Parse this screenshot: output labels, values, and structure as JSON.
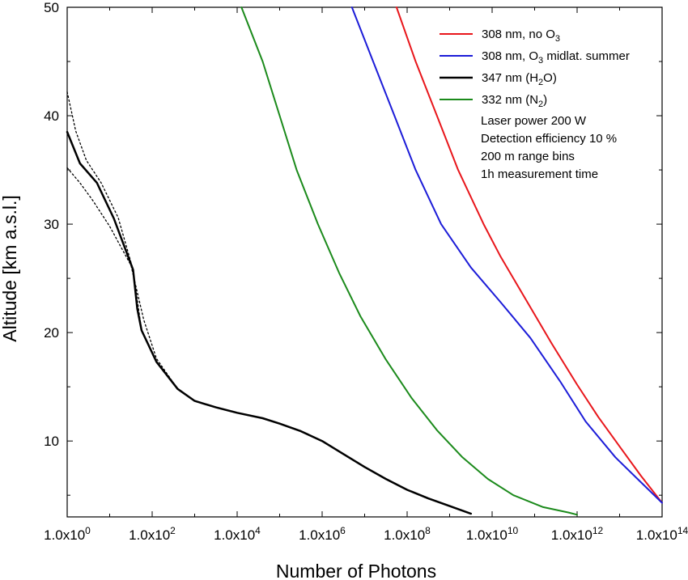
{
  "chart_data": {
    "type": "line",
    "xlabel": "Number of Photons",
    "ylabel": "Altitude [km a.s.l.]",
    "xscale": "log",
    "xlim_log10": [
      0,
      14
    ],
    "ylim": [
      3,
      50
    ],
    "grid": false,
    "legend_position": "top-right",
    "x_ticks": [
      {
        "exp": 0,
        "mant": "1.0x10",
        "sup": "0"
      },
      {
        "exp": 2,
        "mant": "1.0x10",
        "sup": "2"
      },
      {
        "exp": 4,
        "mant": "1.0x10",
        "sup": "4"
      },
      {
        "exp": 6,
        "mant": "1.0x10",
        "sup": "6"
      },
      {
        "exp": 8,
        "mant": "1.0x10",
        "sup": "8"
      },
      {
        "exp": 10,
        "mant": "1.0x10",
        "sup": "10"
      },
      {
        "exp": 12,
        "mant": "1.0x10",
        "sup": "12"
      },
      {
        "exp": 14,
        "mant": "1.0x10",
        "sup": "14"
      }
    ],
    "y_ticks": [
      10,
      20,
      30,
      40,
      50
    ],
    "series": [
      {
        "key": "red",
        "legend": {
          "text": "308 nm, no O",
          "sub": "3",
          "after": ""
        },
        "color": "#e8161b",
        "width": 2,
        "style": "solid",
        "log10x": [
          7.75,
          8.2,
          8.7,
          9.2,
          9.8,
          10.2,
          10.8,
          11.4,
          12.0,
          12.5,
          13.0,
          13.5,
          14.0
        ],
        "y": [
          50,
          45,
          40,
          35,
          30,
          27,
          23,
          19,
          15.2,
          12.2,
          9.5,
          6.8,
          4.3
        ]
      },
      {
        "key": "blue",
        "legend": {
          "text": "308 nm, O",
          "sub": "3",
          "after": " midlat. summer"
        },
        "color": "#1c1cd8",
        "width": 2,
        "style": "solid",
        "log10x": [
          6.7,
          7.2,
          7.7,
          8.2,
          8.8,
          9.5,
          10.2,
          10.9,
          11.6,
          12.2,
          12.9,
          13.5,
          14.0
        ],
        "y": [
          50,
          45,
          40,
          35,
          30,
          26,
          22.8,
          19.5,
          15.5,
          11.8,
          8.5,
          6.2,
          4.3
        ]
      },
      {
        "key": "black",
        "legend": {
          "text": "347 nm (H",
          "sub": "2",
          "after": "O)"
        },
        "color": "#000000",
        "width": 2.5,
        "style": "solid",
        "log10x": [
          0,
          0.3,
          0.7,
          1.1,
          1.55,
          1.65,
          1.75,
          2.1,
          2.6,
          3.0,
          3.5,
          4.0,
          4.6,
          5.0,
          5.5,
          6.0,
          6.5,
          7.0,
          7.5,
          8.0,
          8.5,
          9.0,
          9.5
        ],
        "y": [
          38.5,
          35.6,
          33.8,
          30.5,
          25.8,
          22.2,
          20.2,
          17.3,
          14.8,
          13.7,
          13.1,
          12.6,
          12.1,
          11.6,
          10.9,
          10.0,
          8.8,
          7.6,
          6.5,
          5.5,
          4.7,
          4.0,
          3.3
        ]
      },
      {
        "key": "black-upper",
        "legend": null,
        "color": "#000000",
        "width": 1.3,
        "style": "dotted",
        "log10x": [
          0,
          0.2,
          0.45,
          0.8,
          1.2,
          1.55,
          1.75,
          2.1,
          2.6
        ],
        "y": [
          42.2,
          38.6,
          35.9,
          33.8,
          30.6,
          25.8,
          20.2,
          17.3,
          14.8
        ]
      },
      {
        "key": "black-lower",
        "legend": null,
        "color": "#000000",
        "width": 1.3,
        "style": "dotted",
        "log10x": [
          0,
          0.3,
          0.6,
          1.0,
          1.5,
          1.8,
          2.1,
          2.6
        ],
        "y": [
          35.2,
          33.8,
          32.2,
          29.8,
          26.2,
          21.2,
          17.6,
          14.8
        ]
      },
      {
        "key": "green",
        "legend": {
          "text": "332 nm (N",
          "sub": "2",
          "after": ")"
        },
        "color": "#1b8a1b",
        "width": 2,
        "style": "solid",
        "log10x": [
          4.1,
          4.6,
          5.0,
          5.4,
          5.9,
          6.4,
          6.9,
          7.5,
          8.1,
          8.7,
          9.3,
          9.9,
          10.5,
          11.2,
          11.8,
          12.0
        ],
        "y": [
          50,
          45,
          40,
          35,
          30,
          25.5,
          21.5,
          17.5,
          14.0,
          11.0,
          8.5,
          6.5,
          5.0,
          3.9,
          3.4,
          3.2
        ]
      }
    ],
    "annotations": [
      "Laser power 200 W",
      "Detection efficiency 10 %",
      "200 m range bins",
      "1h measurement time"
    ]
  }
}
